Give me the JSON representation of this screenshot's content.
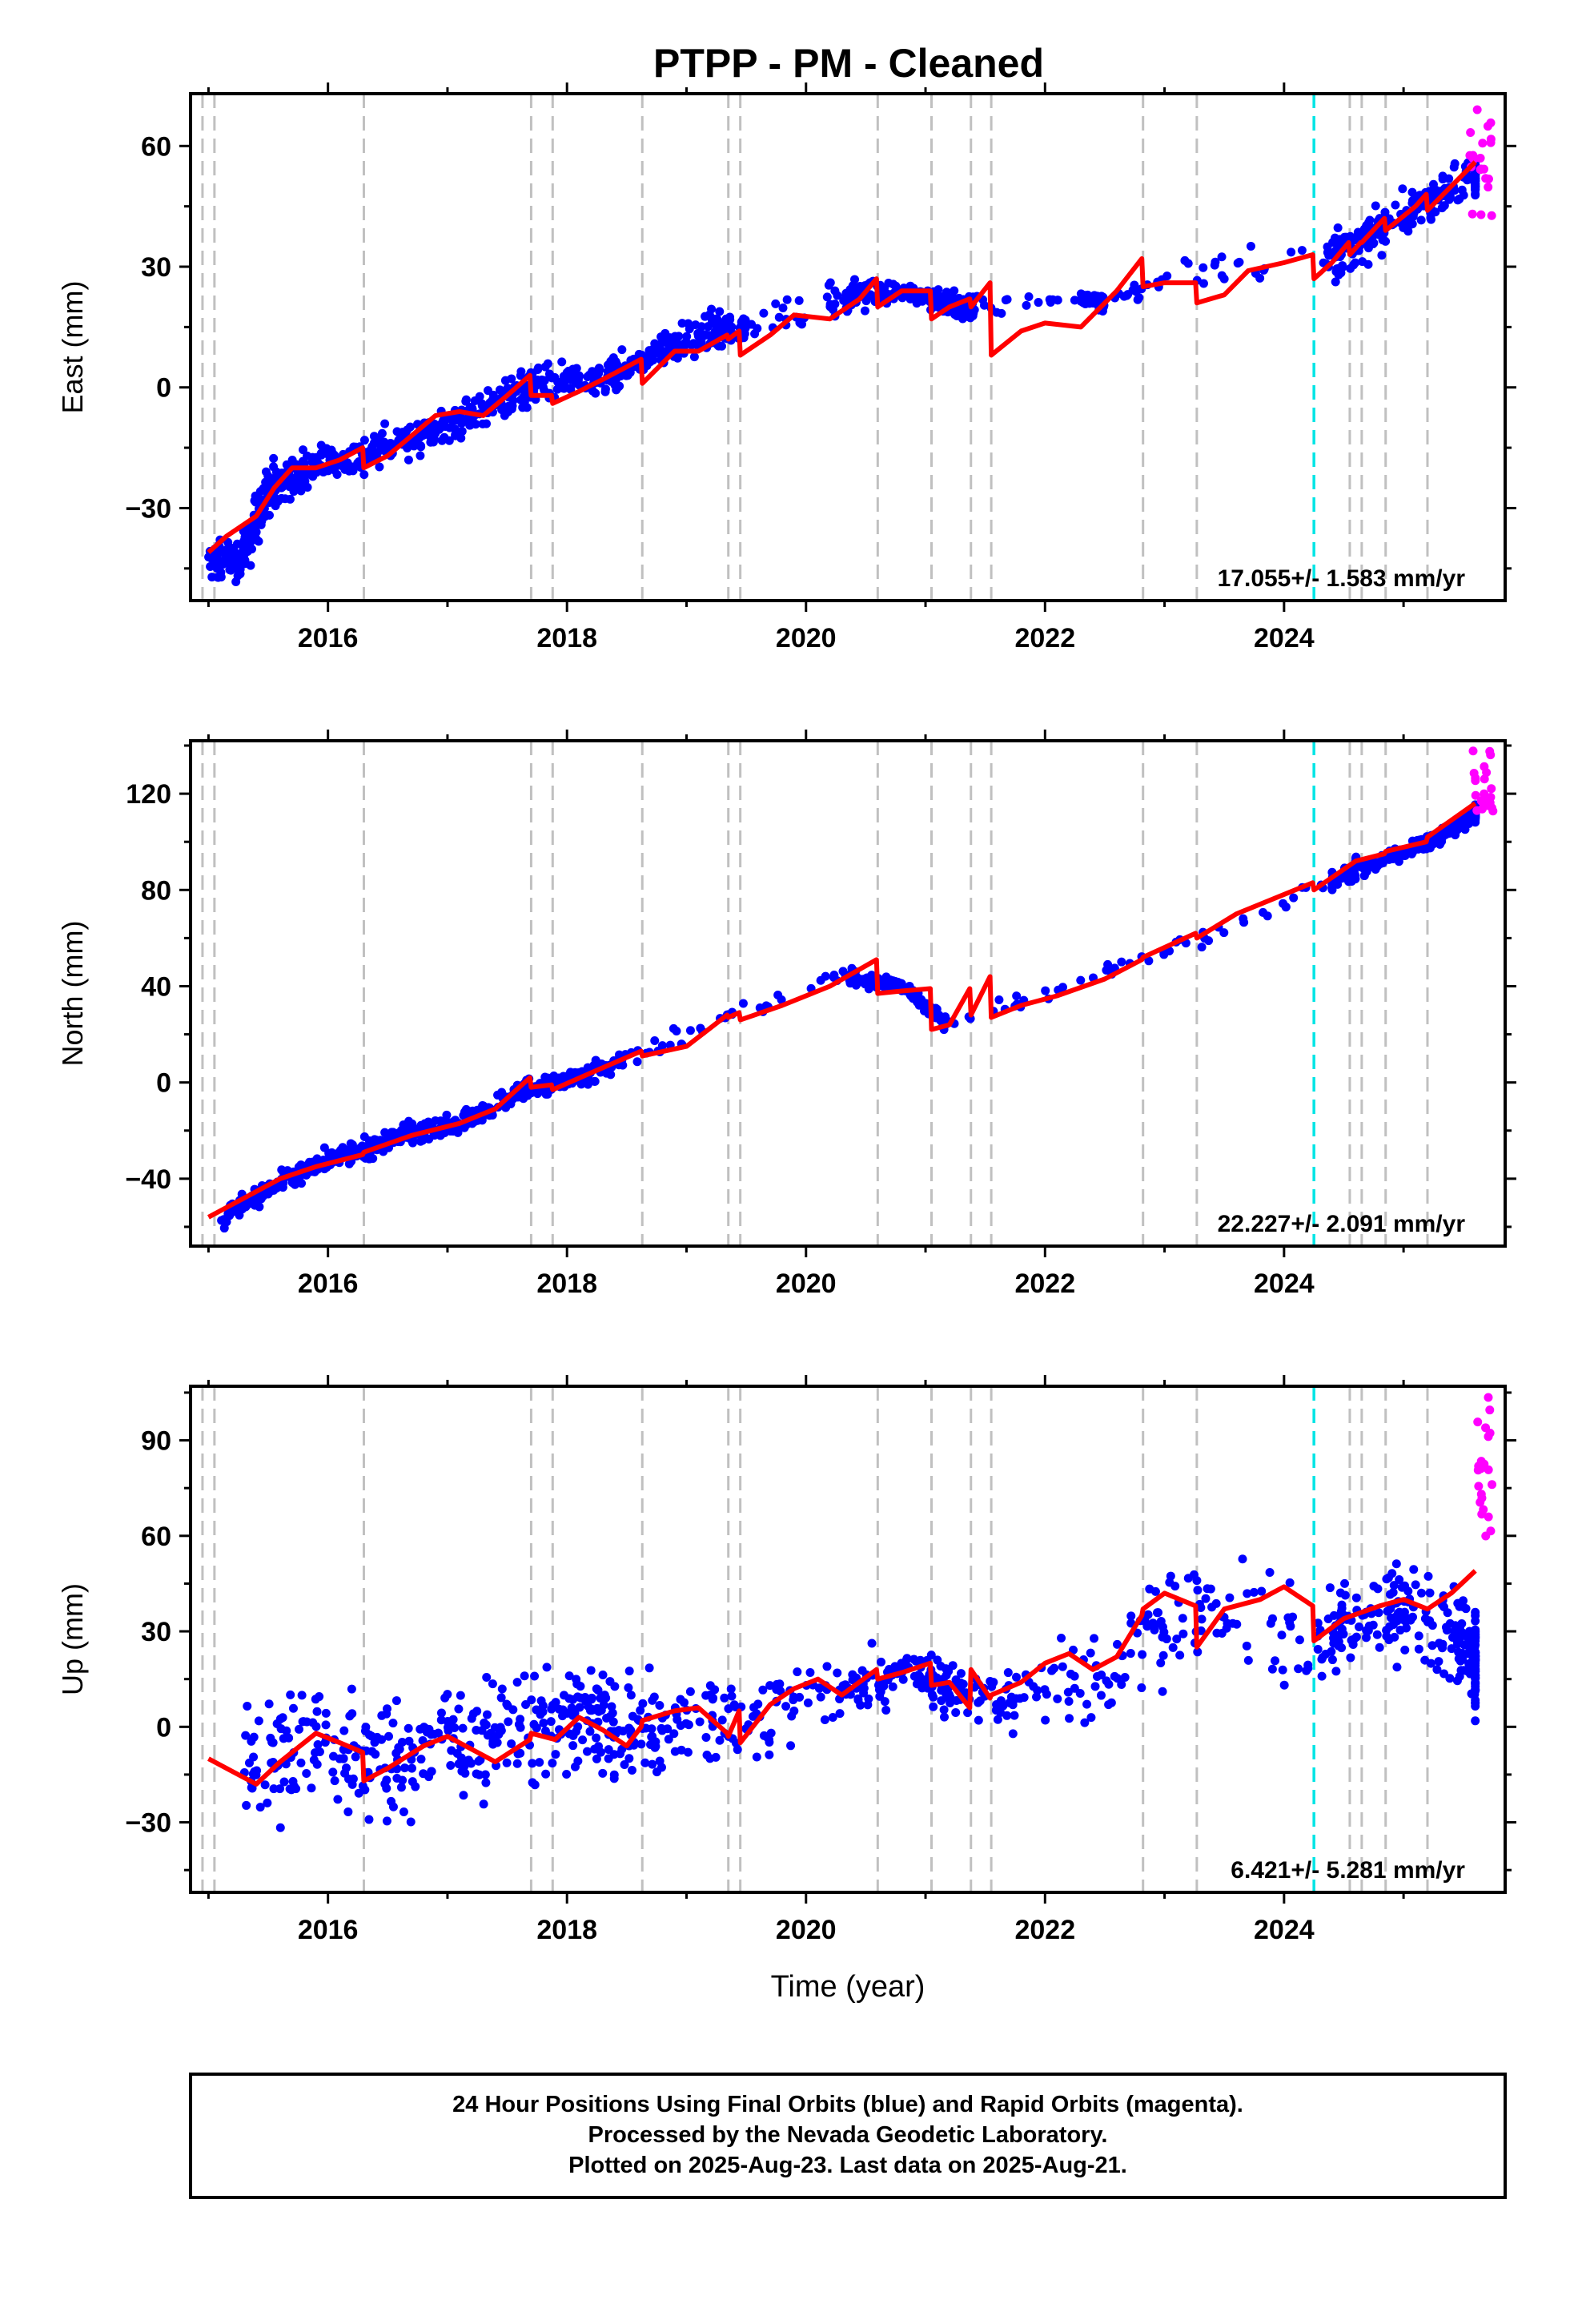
{
  "title": "PTPP  - PM - Cleaned",
  "footer": {
    "lines": [
      "24 Hour Positions Using Final Orbits (blue) and Rapid Orbits (magenta).",
      "Processed by the Nevada Geodetic Laboratory.",
      "Plotted on 2025-Aug-23. Last data on 2025-Aug-21."
    ]
  },
  "colors": {
    "final_orbits": "#0000ff",
    "rapid_orbits": "#ff00ff",
    "model": "#ff0000",
    "step_line": "#c0c0c0",
    "equipment_line": "#00e5e5"
  },
  "chart_data": [
    {
      "type": "scatter",
      "xlabel": "",
      "ylabel": "East (mm)",
      "xlim": [
        2014.85,
        2025.85
      ],
      "ylim": [
        -53,
        73
      ],
      "x_ticks": [
        "2016",
        "2018",
        "2020",
        "2022",
        "2024"
      ],
      "y_ticks": [
        "60",
        "30",
        "0",
        "−30"
      ],
      "grid": false,
      "rate_label": "17.055+/- 1.583 mm/yr",
      "step_lines_x": [
        2014.95,
        2015.05,
        2016.3,
        2017.7,
        2017.88,
        2018.63,
        2019.35,
        2019.45,
        2020.6,
        2021.05,
        2021.38,
        2021.55,
        2022.82,
        2023.27,
        2024.55,
        2024.65,
        2024.85,
        2025.2
      ],
      "equipment_lines_x": [
        2024.25
      ],
      "model": {
        "x": [
          2015.0,
          2015.15,
          2015.4,
          2015.55,
          2015.7,
          2015.9,
          2016.1,
          2016.29,
          2016.3,
          2016.5,
          2016.7,
          2016.9,
          2017.1,
          2017.3,
          2017.5,
          2017.69,
          2017.7,
          2017.87,
          2017.88,
          2018.1,
          2018.3,
          2018.62,
          2018.63,
          2018.9,
          2019.1,
          2019.34,
          2019.35,
          2019.44,
          2019.45,
          2019.7,
          2019.9,
          2020.2,
          2020.45,
          2020.59,
          2020.6,
          2020.8,
          2021.04,
          2021.05,
          2021.2,
          2021.37,
          2021.38,
          2021.54,
          2021.55,
          2021.8,
          2022.0,
          2022.3,
          2022.6,
          2022.81,
          2022.82,
          2023.0,
          2023.26,
          2023.27,
          2023.5,
          2023.7,
          2024.0,
          2024.24,
          2024.25,
          2024.4,
          2024.54,
          2024.55,
          2024.64,
          2024.65,
          2024.84,
          2024.85,
          2025.1,
          2025.19,
          2025.2,
          2025.4,
          2025.6
        ],
        "y": [
          -41,
          -37,
          -32,
          -25,
          -20,
          -20,
          -18,
          -15,
          -20,
          -17,
          -12,
          -7,
          -6,
          -7,
          -2,
          3,
          -2,
          -2,
          -4,
          -1,
          2,
          7,
          1,
          9,
          9,
          13,
          12,
          14,
          8,
          13,
          18,
          17,
          22,
          27,
          20,
          24,
          24,
          17,
          20,
          22,
          20,
          26,
          8,
          14,
          16,
          15,
          24,
          32,
          25,
          26,
          26,
          21,
          23,
          29,
          31,
          33,
          27,
          31,
          36,
          33,
          36,
          36,
          42,
          39,
          45,
          48,
          44,
          50,
          56
        ]
      },
      "final_orbits": [
        {
          "x": 2015.0,
          "y": -44,
          "spread": 4
        },
        {
          "x": 2015.3,
          "y": -42,
          "spread": 5
        },
        {
          "x": 2015.5,
          "y": -25,
          "spread": 6
        },
        {
          "x": 2015.8,
          "y": -20,
          "spread": 4
        },
        {
          "x": 2016.3,
          "y": -17,
          "spread": 4
        },
        {
          "x": 2016.8,
          "y": -11,
          "spread": 4
        },
        {
          "x": 2017.3,
          "y": -6,
          "spread": 4
        },
        {
          "x": 2017.7,
          "y": 0,
          "spread": 4
        },
        {
          "x": 2018.3,
          "y": 2,
          "spread": 4
        },
        {
          "x": 2018.7,
          "y": 8,
          "spread": 3
        },
        {
          "x": 2019.2,
          "y": 14,
          "spread": 4
        },
        {
          "x": 2019.5,
          "y": 15,
          "spread": 3
        },
        {
          "x": 2020.2,
          "y": 22,
          "spread": 4
        },
        {
          "x": 2020.8,
          "y": 24,
          "spread": 2
        },
        {
          "x": 2021.2,
          "y": 21,
          "spread": 3
        },
        {
          "x": 2021.4,
          "y": 20,
          "spread": 3
        },
        {
          "x": 2022.3,
          "y": 22,
          "spread": 1
        },
        {
          "x": 2022.5,
          "y": 21,
          "spread": 2
        },
        {
          "x": 2023.2,
          "y": 30,
          "spread": 4
        },
        {
          "x": 2024.35,
          "y": 31,
          "spread": 4
        },
        {
          "x": 2024.7,
          "y": 37,
          "spread": 5
        },
        {
          "x": 2025.1,
          "y": 45,
          "spread": 4
        },
        {
          "x": 2025.6,
          "y": 53,
          "spread": 4
        }
      ],
      "rapid_orbits": {
        "x": [
          2025.55,
          2025.75
        ],
        "y_range": [
          42,
          70
        ]
      }
    },
    {
      "type": "scatter",
      "xlabel": "",
      "ylabel": "North (mm)",
      "xlim": [
        2014.85,
        2025.85
      ],
      "ylim": [
        -68,
        142
      ],
      "x_ticks": [
        "2016",
        "2018",
        "2020",
        "2022",
        "2024"
      ],
      "y_ticks": [
        "120",
        "80",
        "40",
        "0",
        "−40"
      ],
      "grid": false,
      "rate_label": "22.227+/- 2.091 mm/yr",
      "step_lines_x": [
        2014.95,
        2015.05,
        2016.3,
        2017.7,
        2017.88,
        2018.63,
        2019.35,
        2019.45,
        2020.6,
        2021.05,
        2021.38,
        2021.55,
        2022.82,
        2023.27,
        2024.55,
        2024.65,
        2024.85,
        2025.2
      ],
      "equipment_lines_x": [
        2024.25
      ],
      "model": {
        "x": [
          2015.0,
          2015.3,
          2015.6,
          2015.9,
          2016.29,
          2016.3,
          2016.7,
          2017.1,
          2017.4,
          2017.69,
          2017.7,
          2017.87,
          2017.88,
          2018.2,
          2018.62,
          2018.63,
          2019.0,
          2019.34,
          2019.35,
          2019.44,
          2019.45,
          2019.8,
          2020.2,
          2020.59,
          2020.6,
          2020.8,
          2021.04,
          2021.05,
          2021.2,
          2021.37,
          2021.38,
          2021.54,
          2021.55,
          2021.8,
          2022.1,
          2022.5,
          2022.81,
          2022.82,
          2023.26,
          2023.27,
          2023.6,
          2024.24,
          2024.25,
          2024.6,
          2024.84,
          2024.85,
          2025.19,
          2025.2,
          2025.6
        ],
        "y": [
          -56,
          -48,
          -40,
          -35,
          -30,
          -29,
          -22,
          -17,
          -11,
          2,
          -2,
          -1,
          -3,
          4,
          13,
          11,
          15,
          28,
          27,
          29,
          26,
          32,
          40,
          51,
          37,
          38,
          39,
          22,
          24,
          39,
          28,
          44,
          27,
          32,
          36,
          43,
          51,
          52,
          62,
          60,
          70,
          83,
          80,
          92,
          95,
          96,
          100,
          102,
          116
        ]
      },
      "final_orbits": [
        {
          "x": 2015.1,
          "y": -56,
          "spread": 4
        },
        {
          "x": 2015.6,
          "y": -42,
          "spread": 4
        },
        {
          "x": 2016.1,
          "y": -31,
          "spread": 4
        },
        {
          "x": 2016.6,
          "y": -22,
          "spread": 4
        },
        {
          "x": 2017.1,
          "y": -17,
          "spread": 4
        },
        {
          "x": 2017.6,
          "y": -4,
          "spread": 4
        },
        {
          "x": 2018.0,
          "y": 1,
          "spread": 3
        },
        {
          "x": 2018.5,
          "y": 9,
          "spread": 4
        },
        {
          "x": 2019.3,
          "y": 26,
          "spread": 4
        },
        {
          "x": 2020.3,
          "y": 45,
          "spread": 4
        },
        {
          "x": 2020.8,
          "y": 40,
          "spread": 2
        },
        {
          "x": 2021.2,
          "y": 24,
          "spread": 3
        },
        {
          "x": 2022.3,
          "y": 42,
          "spread": 2
        },
        {
          "x": 2023.2,
          "y": 58,
          "spread": 3
        },
        {
          "x": 2024.4,
          "y": 84,
          "spread": 4
        },
        {
          "x": 2024.9,
          "y": 94,
          "spread": 3
        },
        {
          "x": 2025.3,
          "y": 102,
          "spread": 3
        },
        {
          "x": 2025.6,
          "y": 112,
          "spread": 3
        }
      ],
      "rapid_orbits": {
        "x": [
          2025.58,
          2025.75
        ],
        "y_range": [
          112,
          138
        ]
      }
    },
    {
      "type": "scatter",
      "xlabel": "Time (year)",
      "ylabel": "Up (mm)",
      "xlim": [
        2014.85,
        2025.85
      ],
      "ylim": [
        -52,
        107
      ],
      "x_ticks": [
        "2016",
        "2018",
        "2020",
        "2022",
        "2024"
      ],
      "y_ticks": [
        "90",
        "60",
        "30",
        "0",
        "−30"
      ],
      "grid": false,
      "rate_label": "6.421+/- 5.281 mm/yr",
      "step_lines_x": [
        2014.95,
        2015.05,
        2016.3,
        2017.7,
        2017.88,
        2018.63,
        2019.35,
        2019.45,
        2020.6,
        2021.05,
        2021.38,
        2021.55,
        2022.82,
        2023.27,
        2024.55,
        2024.65,
        2024.85,
        2025.2
      ],
      "equipment_lines_x": [
        2024.25
      ],
      "model": {
        "x": [
          2015.0,
          2015.2,
          2015.4,
          2015.6,
          2015.9,
          2016.1,
          2016.29,
          2016.3,
          2016.5,
          2016.8,
          2017.0,
          2017.2,
          2017.4,
          2017.69,
          2017.7,
          2017.9,
          2018.1,
          2018.3,
          2018.5,
          2018.62,
          2018.63,
          2018.9,
          2019.1,
          2019.34,
          2019.35,
          2019.44,
          2019.45,
          2019.7,
          2019.9,
          2020.1,
          2020.3,
          2020.59,
          2020.6,
          2020.8,
          2021.04,
          2021.05,
          2021.2,
          2021.37,
          2021.38,
          2021.54,
          2021.55,
          2021.8,
          2022.0,
          2022.2,
          2022.4,
          2022.6,
          2022.81,
          2022.82,
          2023.0,
          2023.26,
          2023.27,
          2023.5,
          2023.8,
          2024.0,
          2024.24,
          2024.25,
          2024.5,
          2024.8,
          2025.0,
          2025.2,
          2025.4,
          2025.6
        ],
        "y": [
          -10,
          -14,
          -18,
          -11,
          -2,
          -5,
          -8,
          -17,
          -13,
          -6,
          -3,
          -7,
          -11,
          -4,
          -2,
          -4,
          3,
          -1,
          -6,
          0,
          2,
          5,
          6,
          -2,
          -3,
          5,
          -5,
          7,
          12,
          15,
          10,
          18,
          15,
          17,
          20,
          13,
          14,
          6,
          18,
          9,
          10,
          14,
          20,
          23,
          18,
          22,
          35,
          37,
          42,
          38,
          25,
          37,
          40,
          44,
          38,
          27,
          34,
          38,
          40,
          37,
          42,
          49
        ]
      },
      "final_orbits": [
        {
          "x": 2015.3,
          "y": -12,
          "spread": 16
        },
        {
          "x": 2015.9,
          "y": -5,
          "spread": 16
        },
        {
          "x": 2016.5,
          "y": -12,
          "spread": 16
        },
        {
          "x": 2017.1,
          "y": -5,
          "spread": 16
        },
        {
          "x": 2017.7,
          "y": -2,
          "spread": 16
        },
        {
          "x": 2018.2,
          "y": 4,
          "spread": 14
        },
        {
          "x": 2018.6,
          "y": -2,
          "spread": 14
        },
        {
          "x": 2019.3,
          "y": 1,
          "spread": 12
        },
        {
          "x": 2020.3,
          "y": 12,
          "spread": 10
        },
        {
          "x": 2020.9,
          "y": 18,
          "spread": 5
        },
        {
          "x": 2021.3,
          "y": 10,
          "spread": 10
        },
        {
          "x": 2022.3,
          "y": 14,
          "spread": 12
        },
        {
          "x": 2023.2,
          "y": 35,
          "spread": 18
        },
        {
          "x": 2024.4,
          "y": 30,
          "spread": 14
        },
        {
          "x": 2024.9,
          "y": 38,
          "spread": 14
        },
        {
          "x": 2025.35,
          "y": 30,
          "spread": 14
        },
        {
          "x": 2025.6,
          "y": 22,
          "spread": 12
        }
      ],
      "rapid_orbits": {
        "x": [
          2025.62,
          2025.75
        ],
        "y_range": [
          58,
          104
        ]
      }
    }
  ]
}
